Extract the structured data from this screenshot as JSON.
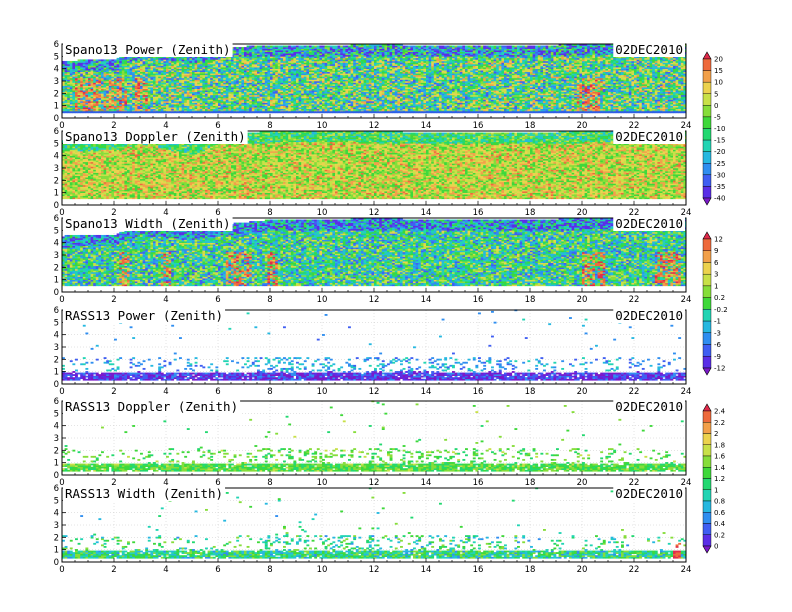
{
  "chart_data": {
    "type": "heatmap",
    "x_ticks": [
      "0",
      "2",
      "4",
      "6",
      "8",
      "10",
      "12",
      "14",
      "16",
      "18",
      "20",
      "22",
      "24"
    ],
    "xlim": [
      0,
      24
    ],
    "y_ticks": [
      "0",
      "1",
      "2",
      "3",
      "4",
      "5",
      "6"
    ],
    "ylim": [
      0,
      6
    ],
    "grid": true,
    "panels": [
      {
        "title": "Spano13 Power (Zenith)",
        "date": "02DEC2010",
        "colorbar": 0,
        "style": "spano",
        "base": 0.5,
        "variation": 0.35,
        "top_hours": [
          [
            0,
            4.6
          ],
          [
            2,
            4.7
          ],
          [
            3,
            5.8
          ],
          [
            5,
            5.2
          ],
          [
            6,
            5.7
          ],
          [
            8,
            5.8
          ],
          [
            12,
            5.9
          ],
          [
            16,
            5.8
          ],
          [
            20,
            5.9
          ],
          [
            24,
            5.9
          ]
        ],
        "hot_hours": [
          [
            0.5,
            2.5
          ],
          [
            2.8,
            3.3
          ],
          [
            19.8,
            20.8
          ]
        ]
      },
      {
        "title": "Spano13 Doppler (Zenith)",
        "date": "02DEC2010",
        "colorbar": 0,
        "style": "spano",
        "base": 0.7,
        "variation": 0.2,
        "top_hours": [
          [
            0,
            5.2
          ],
          [
            2,
            5.3
          ],
          [
            3,
            5.8
          ],
          [
            5,
            4.9
          ],
          [
            6,
            5.8
          ],
          [
            8,
            5.9
          ],
          [
            12,
            5.9
          ],
          [
            16,
            5.8
          ],
          [
            20,
            5.9
          ],
          [
            24,
            5.9
          ]
        ],
        "hot_hours": []
      },
      {
        "title": "Spano13 Width (Zenith)",
        "date": "02DEC2010",
        "colorbar": 1,
        "style": "spano",
        "base": 0.45,
        "variation": 0.3,
        "top_hours": [
          [
            0,
            4.5
          ],
          [
            2,
            4.6
          ],
          [
            3,
            5.5
          ],
          [
            5,
            5.0
          ],
          [
            6,
            5.4
          ],
          [
            8,
            5.8
          ],
          [
            12,
            5.9
          ],
          [
            16,
            5.8
          ],
          [
            20,
            5.9
          ],
          [
            24,
            5.9
          ]
        ],
        "hot_hours": [
          [
            2.2,
            2.6
          ],
          [
            3.8,
            4.2
          ],
          [
            6.2,
            7.2
          ],
          [
            7.8,
            8.2
          ],
          [
            20.0,
            20.9
          ],
          [
            22.8,
            23.8
          ]
        ]
      },
      {
        "title": "RASS13 Power (Zenith)",
        "date": "02DEC2010",
        "colorbar": 1,
        "style": "rass",
        "base": 0.08,
        "variation": 0.15,
        "hot_hours": []
      },
      {
        "title": "RASS13 Doppler (Zenith)",
        "date": "02DEC2010",
        "colorbar": 2,
        "style": "rass",
        "base": 0.55,
        "variation": 0.12,
        "hot_hours": []
      },
      {
        "title": "RASS13 Width (Zenith)",
        "date": "02DEC2010",
        "colorbar": 2,
        "style": "rass",
        "base": 0.45,
        "variation": 0.2,
        "hot_hours": [
          [
            23.5,
            23.8
          ]
        ]
      }
    ],
    "colorbars": [
      {
        "labels": [
          "20",
          "15",
          "10",
          "5",
          "0",
          "-5",
          "-10",
          "-15",
          "-20",
          "-25",
          "-30",
          "-35",
          "-40"
        ]
      },
      {
        "labels": [
          "12",
          "9",
          "6",
          "3",
          "1",
          "0.2",
          "-0.2",
          "-1",
          "-3",
          "-6",
          "-9",
          "-12"
        ]
      },
      {
        "labels": [
          "2.4",
          "2.2",
          "2",
          "1.8",
          "1.6",
          "1.4",
          "1.2",
          "1",
          "0.8",
          "0.6",
          "0.4",
          "0.2",
          "0"
        ]
      }
    ],
    "palette": [
      "#7a18c8",
      "#5a2ee6",
      "#3f5ef2",
      "#2f8ef0",
      "#26b8e0",
      "#22d4b4",
      "#22d870",
      "#3ed83a",
      "#86dd3a",
      "#c8e048",
      "#ecd24e",
      "#f2a04a",
      "#ee6a3c",
      "#e02a4a"
    ]
  }
}
